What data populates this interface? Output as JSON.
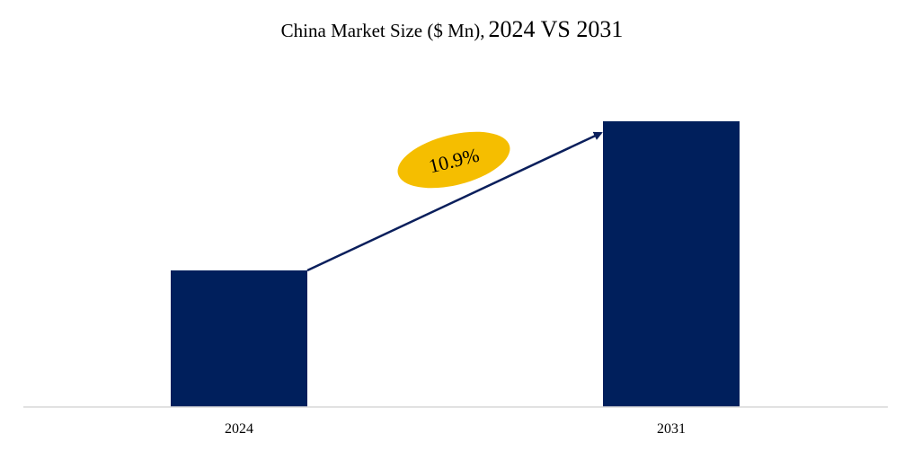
{
  "chart_data": {
    "type": "bar",
    "title_main": "China Market Size ($ Mn),",
    "title_years": "2024 VS 2031",
    "categories": [
      "2024",
      "2031"
    ],
    "values": [
      152,
      318
    ],
    "ylim": [
      0,
      330
    ],
    "grid": false,
    "bar_color": "#001f5c",
    "annotation": {
      "label": "10.9%",
      "badge_color": "#f5be00",
      "arrow_color": "#0a1f5c"
    }
  }
}
